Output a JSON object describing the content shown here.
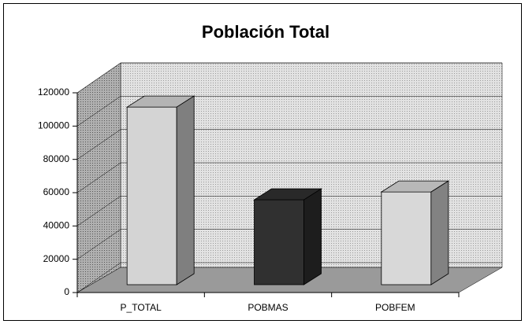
{
  "chart_data": {
    "type": "bar3d",
    "title": "Población Total",
    "categories": [
      "P_TOTAL",
      "POBMAS",
      "POBFEM"
    ],
    "values": [
      106700,
      51000,
      55700
    ],
    "colors": [
      "#d4d4d4",
      "#303030",
      "#d8d8d8"
    ],
    "ylim": [
      0,
      120000
    ],
    "yticks": [
      0,
      20000,
      40000,
      60000,
      80000,
      100000,
      120000
    ],
    "grid": true
  }
}
